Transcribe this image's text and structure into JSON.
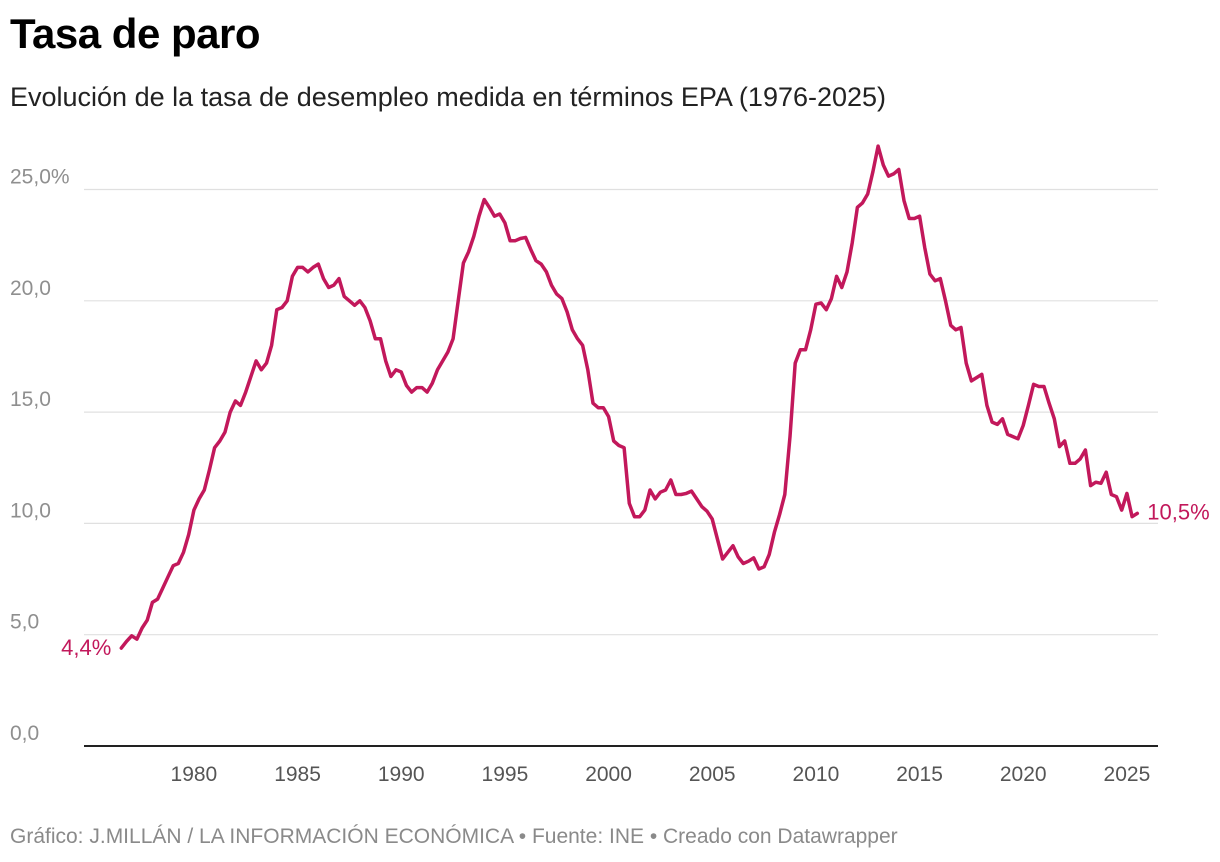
{
  "header": {
    "title": "Tasa de paro",
    "subtitle": "Evolución de la tasa de desempleo medida en términos EPA (1976-2025)"
  },
  "footer": {
    "credit": "Gráfico: J.MILLÁN / LA INFORMACIÓN ECONÓMICA • Fuente: INE • Creado con Datawrapper"
  },
  "colors": {
    "line": "#c2185b"
  },
  "chart_data": {
    "type": "line",
    "title": "Tasa de paro",
    "subtitle": "Evolución de la tasa de desempleo medida en términos EPA (1976-2025)",
    "xlabel": "",
    "ylabel": "",
    "xlim": [
      1974.7,
      2026.5
    ],
    "ylim": [
      0,
      27
    ],
    "grid": true,
    "y_ticks": [
      {
        "value": 0,
        "label": "0,0"
      },
      {
        "value": 5,
        "label": "5,0"
      },
      {
        "value": 10,
        "label": "10,0"
      },
      {
        "value": 15,
        "label": "15,0"
      },
      {
        "value": 20,
        "label": "20,0"
      },
      {
        "value": 25,
        "label": "25,0%"
      }
    ],
    "x_ticks": [
      {
        "value": 1980,
        "label": "1980"
      },
      {
        "value": 1985,
        "label": "1985"
      },
      {
        "value": 1990,
        "label": "1990"
      },
      {
        "value": 1995,
        "label": "1995"
      },
      {
        "value": 2000,
        "label": "2000"
      },
      {
        "value": 2005,
        "label": "2005"
      },
      {
        "value": 2010,
        "label": "2010"
      },
      {
        "value": 2015,
        "label": "2015"
      },
      {
        "value": 2020,
        "label": "2020"
      },
      {
        "value": 2025,
        "label": "2025"
      }
    ],
    "annotations": [
      {
        "label": "4,4%",
        "x": 1976.5,
        "y": 4.4,
        "side": "left"
      },
      {
        "label": "10,5%",
        "x": 2025.5,
        "y": 10.5,
        "side": "right"
      }
    ],
    "series": [
      {
        "values": [
          [
            1976.5,
            4.4
          ],
          [
            1976.75,
            4.7
          ],
          [
            1977.0,
            4.95
          ],
          [
            1977.25,
            4.8
          ],
          [
            1977.5,
            5.3
          ],
          [
            1977.75,
            5.65
          ],
          [
            1978.0,
            6.45
          ],
          [
            1978.25,
            6.6
          ],
          [
            1978.5,
            7.1
          ],
          [
            1978.75,
            7.6
          ],
          [
            1979.0,
            8.1
          ],
          [
            1979.25,
            8.2
          ],
          [
            1979.5,
            8.7
          ],
          [
            1979.75,
            9.5
          ],
          [
            1980.0,
            10.6
          ],
          [
            1980.25,
            11.1
          ],
          [
            1980.5,
            11.5
          ],
          [
            1980.75,
            12.4
          ],
          [
            1981.0,
            13.4
          ],
          [
            1981.25,
            13.7
          ],
          [
            1981.5,
            14.1
          ],
          [
            1981.75,
            15.0
          ],
          [
            1982.0,
            15.5
          ],
          [
            1982.25,
            15.3
          ],
          [
            1982.5,
            15.9
          ],
          [
            1982.75,
            16.6
          ],
          [
            1983.0,
            17.3
          ],
          [
            1983.25,
            16.9
          ],
          [
            1983.5,
            17.2
          ],
          [
            1983.75,
            18.0
          ],
          [
            1984.0,
            19.6
          ],
          [
            1984.25,
            19.7
          ],
          [
            1984.5,
            20.0
          ],
          [
            1984.75,
            21.1
          ],
          [
            1985.0,
            21.5
          ],
          [
            1985.25,
            21.5
          ],
          [
            1985.5,
            21.3
          ],
          [
            1985.75,
            21.5
          ],
          [
            1986.0,
            21.65
          ],
          [
            1986.25,
            21.0
          ],
          [
            1986.5,
            20.6
          ],
          [
            1986.75,
            20.7
          ],
          [
            1987.0,
            21.0
          ],
          [
            1987.25,
            20.2
          ],
          [
            1987.5,
            20.0
          ],
          [
            1987.75,
            19.8
          ],
          [
            1988.0,
            20.0
          ],
          [
            1988.25,
            19.7
          ],
          [
            1988.5,
            19.1
          ],
          [
            1988.75,
            18.3
          ],
          [
            1989.0,
            18.3
          ],
          [
            1989.25,
            17.3
          ],
          [
            1989.5,
            16.6
          ],
          [
            1989.75,
            16.9
          ],
          [
            1990.0,
            16.8
          ],
          [
            1990.25,
            16.2
          ],
          [
            1990.5,
            15.9
          ],
          [
            1990.75,
            16.1
          ],
          [
            1991.0,
            16.1
          ],
          [
            1991.25,
            15.9
          ],
          [
            1991.5,
            16.3
          ],
          [
            1991.75,
            16.9
          ],
          [
            1992.0,
            17.3
          ],
          [
            1992.25,
            17.7
          ],
          [
            1992.5,
            18.3
          ],
          [
            1992.75,
            20.0
          ],
          [
            1993.0,
            21.7
          ],
          [
            1993.25,
            22.2
          ],
          [
            1993.5,
            22.9
          ],
          [
            1993.75,
            23.8
          ],
          [
            1994.0,
            24.55
          ],
          [
            1994.25,
            24.2
          ],
          [
            1994.5,
            23.8
          ],
          [
            1994.75,
            23.9
          ],
          [
            1995.0,
            23.5
          ],
          [
            1995.25,
            22.7
          ],
          [
            1995.5,
            22.7
          ],
          [
            1995.75,
            22.8
          ],
          [
            1996.0,
            22.85
          ],
          [
            1996.25,
            22.3
          ],
          [
            1996.5,
            21.8
          ],
          [
            1996.75,
            21.65
          ],
          [
            1997.0,
            21.3
          ],
          [
            1997.25,
            20.7
          ],
          [
            1997.5,
            20.3
          ],
          [
            1997.75,
            20.1
          ],
          [
            1998.0,
            19.5
          ],
          [
            1998.25,
            18.7
          ],
          [
            1998.5,
            18.3
          ],
          [
            1998.75,
            18.0
          ],
          [
            1999.0,
            16.9
          ],
          [
            1999.25,
            15.4
          ],
          [
            1999.5,
            15.2
          ],
          [
            1999.75,
            15.2
          ],
          [
            2000.0,
            14.8
          ],
          [
            2000.25,
            13.7
          ],
          [
            2000.5,
            13.5
          ],
          [
            2000.75,
            13.4
          ],
          [
            2001.0,
            10.9
          ],
          [
            2001.25,
            10.3
          ],
          [
            2001.5,
            10.3
          ],
          [
            2001.75,
            10.6
          ],
          [
            2002.0,
            11.5
          ],
          [
            2002.25,
            11.1
          ],
          [
            2002.5,
            11.4
          ],
          [
            2002.75,
            11.5
          ],
          [
            2003.0,
            11.95
          ],
          [
            2003.25,
            11.3
          ],
          [
            2003.5,
            11.3
          ],
          [
            2003.75,
            11.35
          ],
          [
            2004.0,
            11.45
          ],
          [
            2004.25,
            11.1
          ],
          [
            2004.5,
            10.75
          ],
          [
            2004.75,
            10.55
          ],
          [
            2005.0,
            10.2
          ],
          [
            2005.25,
            9.3
          ],
          [
            2005.5,
            8.4
          ],
          [
            2005.75,
            8.7
          ],
          [
            2006.0,
            9.0
          ],
          [
            2006.25,
            8.5
          ],
          [
            2006.5,
            8.2
          ],
          [
            2006.75,
            8.3
          ],
          [
            2007.0,
            8.45
          ],
          [
            2007.25,
            7.95
          ],
          [
            2007.5,
            8.05
          ],
          [
            2007.75,
            8.6
          ],
          [
            2008.0,
            9.6
          ],
          [
            2008.25,
            10.4
          ],
          [
            2008.5,
            11.3
          ],
          [
            2008.75,
            13.9
          ],
          [
            2009.0,
            17.2
          ],
          [
            2009.25,
            17.8
          ],
          [
            2009.5,
            17.8
          ],
          [
            2009.75,
            18.7
          ],
          [
            2010.0,
            19.85
          ],
          [
            2010.25,
            19.9
          ],
          [
            2010.5,
            19.6
          ],
          [
            2010.75,
            20.1
          ],
          [
            2011.0,
            21.1
          ],
          [
            2011.25,
            20.6
          ],
          [
            2011.5,
            21.3
          ],
          [
            2011.75,
            22.6
          ],
          [
            2012.0,
            24.2
          ],
          [
            2012.25,
            24.4
          ],
          [
            2012.5,
            24.8
          ],
          [
            2012.75,
            25.8
          ],
          [
            2013.0,
            26.95
          ],
          [
            2013.25,
            26.1
          ],
          [
            2013.5,
            25.6
          ],
          [
            2013.75,
            25.7
          ],
          [
            2014.0,
            25.9
          ],
          [
            2014.25,
            24.5
          ],
          [
            2014.5,
            23.7
          ],
          [
            2014.75,
            23.7
          ],
          [
            2015.0,
            23.8
          ],
          [
            2015.25,
            22.4
          ],
          [
            2015.5,
            21.2
          ],
          [
            2015.75,
            20.9
          ],
          [
            2016.0,
            21.0
          ],
          [
            2016.25,
            20.0
          ],
          [
            2016.5,
            18.9
          ],
          [
            2016.75,
            18.7
          ],
          [
            2017.0,
            18.8
          ],
          [
            2017.25,
            17.2
          ],
          [
            2017.5,
            16.4
          ],
          [
            2017.75,
            16.55
          ],
          [
            2018.0,
            16.7
          ],
          [
            2018.25,
            15.3
          ],
          [
            2018.5,
            14.55
          ],
          [
            2018.75,
            14.45
          ],
          [
            2019.0,
            14.7
          ],
          [
            2019.25,
            14.0
          ],
          [
            2019.5,
            13.9
          ],
          [
            2019.75,
            13.8
          ],
          [
            2020.0,
            14.4
          ],
          [
            2020.25,
            15.3
          ],
          [
            2020.5,
            16.25
          ],
          [
            2020.75,
            16.15
          ],
          [
            2021.0,
            16.15
          ],
          [
            2021.25,
            15.4
          ],
          [
            2021.5,
            14.7
          ],
          [
            2021.75,
            13.45
          ],
          [
            2022.0,
            13.7
          ],
          [
            2022.25,
            12.7
          ],
          [
            2022.5,
            12.7
          ],
          [
            2022.75,
            12.9
          ],
          [
            2023.0,
            13.3
          ],
          [
            2023.25,
            11.7
          ],
          [
            2023.5,
            11.85
          ],
          [
            2023.75,
            11.8
          ],
          [
            2024.0,
            12.3
          ],
          [
            2024.25,
            11.3
          ],
          [
            2024.5,
            11.2
          ],
          [
            2024.75,
            10.6
          ],
          [
            2025.0,
            11.35
          ],
          [
            2025.25,
            10.3
          ],
          [
            2025.5,
            10.45
          ]
        ]
      }
    ]
  }
}
